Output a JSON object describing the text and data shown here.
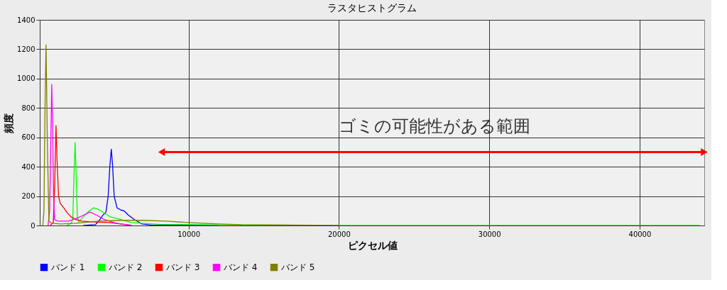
{
  "chart_data": {
    "type": "line",
    "title": "ラスタヒストグラム",
    "xlabel": "ピクセル値",
    "ylabel": "頻度",
    "xlim": [
      100,
      44300
    ],
    "ylim": [
      0,
      1400
    ],
    "xticks": [
      10000,
      20000,
      30000,
      40000
    ],
    "yticks": [
      0,
      200,
      400,
      600,
      800,
      1000,
      1200,
      1400
    ],
    "grid": true,
    "legend": "bottom",
    "marker": "none",
    "line_style": "solid",
    "series": [
      {
        "name": "バンド 1",
        "color": "#0000ff",
        "x": [
          3000,
          3800,
          4100,
          4300,
          4500,
          4650,
          4760,
          4860,
          4950,
          5050,
          5240,
          5500,
          5700,
          6000,
          6400,
          6900,
          7500,
          9000,
          12000
        ],
        "values": [
          0,
          5,
          40,
          70,
          90,
          200,
          400,
          520,
          400,
          200,
          120,
          105,
          100,
          70,
          40,
          10,
          3,
          2,
          0
        ]
      },
      {
        "name": "バンド 2",
        "color": "#00ff00",
        "x": [
          1900,
          2200,
          2300,
          2380,
          2450,
          2520,
          2600,
          2700,
          3000,
          3400,
          3680,
          4000,
          4760,
          5500,
          6180,
          8000,
          12000,
          20000,
          34000,
          44000
        ],
        "values": [
          0,
          15,
          50,
          350,
          565,
          350,
          60,
          25,
          60,
          100,
          120,
          110,
          60,
          40,
          20,
          8,
          4,
          0,
          0,
          0
        ]
      },
      {
        "name": "バンド 3",
        "color": "#ff0000",
        "x": [
          800,
          1000,
          1100,
          1180,
          1250,
          1350,
          1460,
          1700,
          1900,
          2170,
          2500,
          2880,
          3500,
          4760,
          6200
        ],
        "values": [
          0,
          20,
          300,
          680,
          450,
          200,
          150,
          120,
          90,
          60,
          40,
          30,
          25,
          20,
          0
        ]
      },
      {
        "name": "バンド 4",
        "color": "#ff00ff",
        "x": [
          650,
          760,
          840,
          896,
          950,
          1020,
          1085,
          1300,
          2000,
          2600,
          3000,
          3440,
          3900,
          4400,
          5200,
          6200
        ],
        "values": [
          0,
          100,
          600,
          960,
          700,
          200,
          40,
          30,
          30,
          50,
          70,
          91,
          70,
          40,
          15,
          0
        ]
      },
      {
        "name": "バンド 5",
        "color": "#808000",
        "x": [
          300,
          380,
          450,
          519,
          600,
          708,
          900,
          1500,
          2500,
          4000,
          5500,
          7000,
          8500,
          10000,
          12000,
          13500,
          20000
        ],
        "values": [
          0,
          100,
          800,
          1230,
          600,
          30,
          15,
          10,
          15,
          30,
          35,
          35,
          30,
          20,
          10,
          5,
          0
        ]
      },
      {
        "type": "line",
        "color": "#ff0000",
        "marker": "triangle",
        "x": [
          8200,
          44300
        ],
        "values": [
          500,
          500
        ]
      }
    ],
    "annotations": [
      "ゴミの可能性がある範囲"
    ]
  }
}
